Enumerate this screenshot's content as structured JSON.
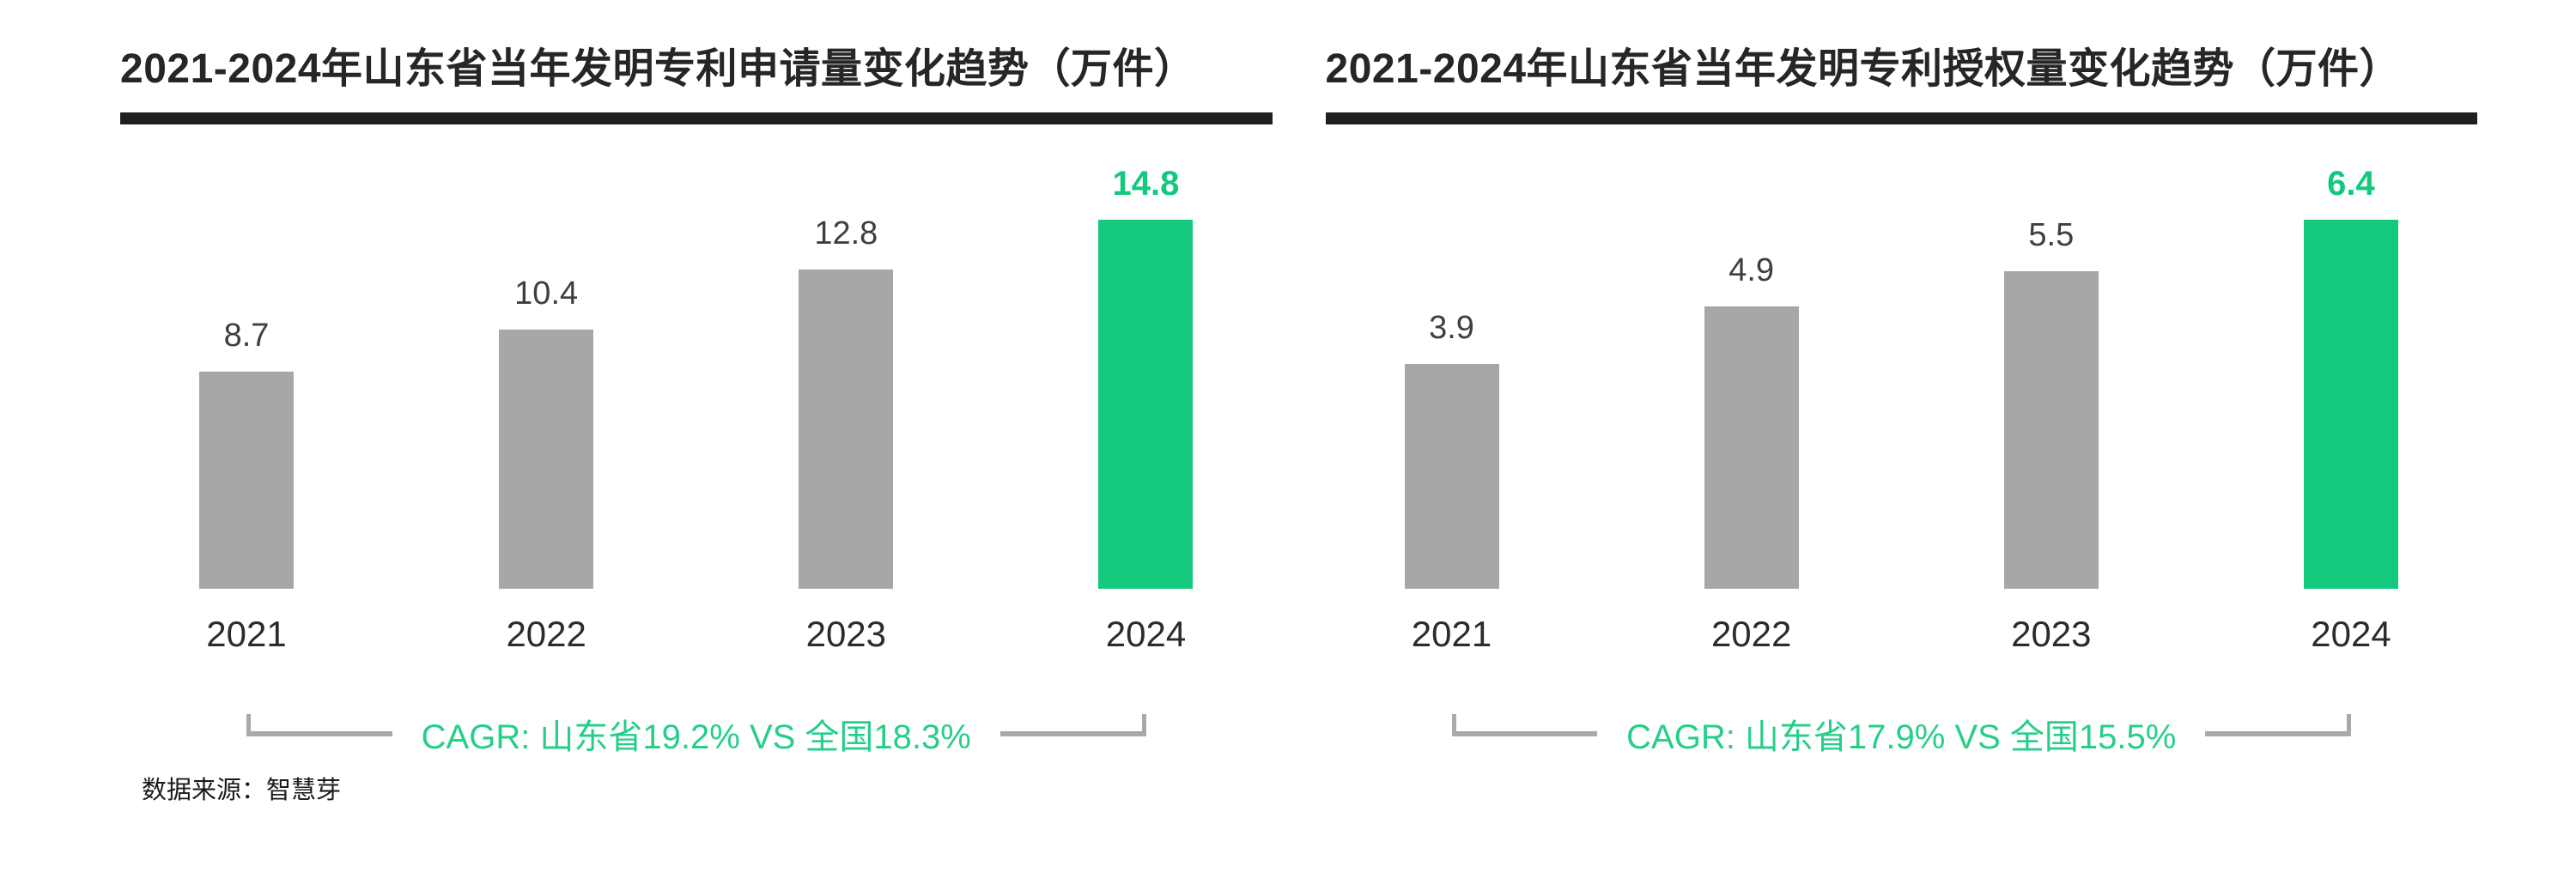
{
  "page": {
    "background": "#ffffff"
  },
  "colors": {
    "bar_gray": "#a7a7a7",
    "accent_green": "#12c97d",
    "cagr_green": "#26cf88",
    "title_dark": "#262626",
    "rule_dark": "#1f1f1f",
    "value_label_dark": "#3f3f3f",
    "bracket_gray": "#a9a9a9"
  },
  "source_note": "数据来源：智慧芽",
  "chart_data": [
    {
      "type": "bar",
      "title": "2021-2024年山东省当年发明专利申请量变化趋势（万件）",
      "categories": [
        "2021",
        "2022",
        "2023",
        "2024"
      ],
      "values": [
        8.7,
        10.4,
        12.8,
        14.8
      ],
      "highlight_index": 3,
      "cagr_note": "CAGR: 山东省19.2% VS 全国18.3%",
      "ylabel": "",
      "xlabel": "",
      "ylim": [
        0,
        16
      ],
      "grid": false,
      "legend": "none",
      "value_labels": "above-bars"
    },
    {
      "type": "bar",
      "title": "2021-2024年山东省当年发明专利授权量变化趋势（万件）",
      "categories": [
        "2021",
        "2022",
        "2023",
        "2024"
      ],
      "values": [
        3.9,
        4.9,
        5.5,
        6.4
      ],
      "highlight_index": 3,
      "cagr_note": "CAGR: 山东省17.9% VS 全国15.5%",
      "ylabel": "",
      "xlabel": "",
      "ylim": [
        0,
        7
      ],
      "grid": false,
      "legend": "none",
      "value_labels": "above-bars"
    }
  ]
}
